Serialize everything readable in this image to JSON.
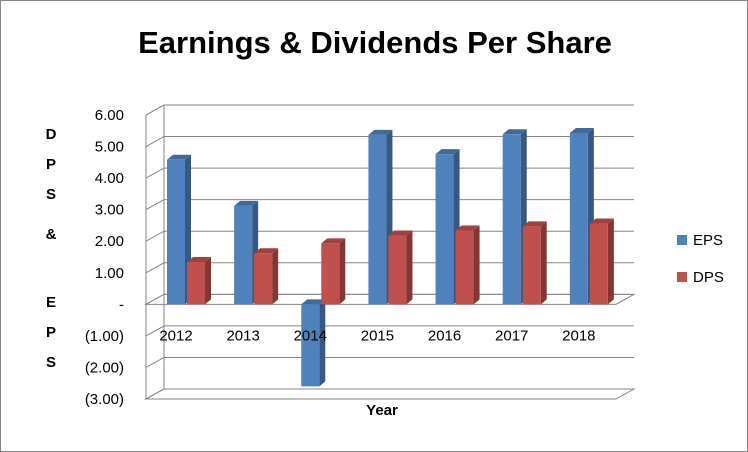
{
  "chart_data": {
    "type": "bar",
    "title": "Earnings & Dividends Per Share",
    "xlabel": "Year",
    "ylabel": "DPS & EPS",
    "categories": [
      "2012",
      "2013",
      "2014",
      "2015",
      "2016",
      "2017",
      "2018"
    ],
    "series": [
      {
        "name": "EPS",
        "values": [
          4.58,
          3.12,
          -2.6,
          5.37,
          4.76,
          5.39,
          5.43
        ],
        "color": "#4F81BD"
      },
      {
        "name": "DPS",
        "values": [
          1.34,
          1.62,
          1.93,
          2.18,
          2.34,
          2.47,
          2.56
        ],
        "color": "#C0504D"
      }
    ],
    "ylim": [
      -3,
      6
    ],
    "y_ticks": [
      {
        "value": 6,
        "label": "6.00"
      },
      {
        "value": 5,
        "label": "5.00"
      },
      {
        "value": 4,
        "label": "4.00"
      },
      {
        "value": 3,
        "label": "3.00"
      },
      {
        "value": 2,
        "label": "2.00"
      },
      {
        "value": 1,
        "label": "1.00"
      },
      {
        "value": 0,
        "label": "-"
      },
      {
        "value": -1,
        "label": "(1.00)"
      },
      {
        "value": -2,
        "label": "(2.00)"
      },
      {
        "value": -3,
        "label": "(3.00)"
      }
    ],
    "grid": true,
    "three_d": true,
    "legend_position": "right"
  }
}
